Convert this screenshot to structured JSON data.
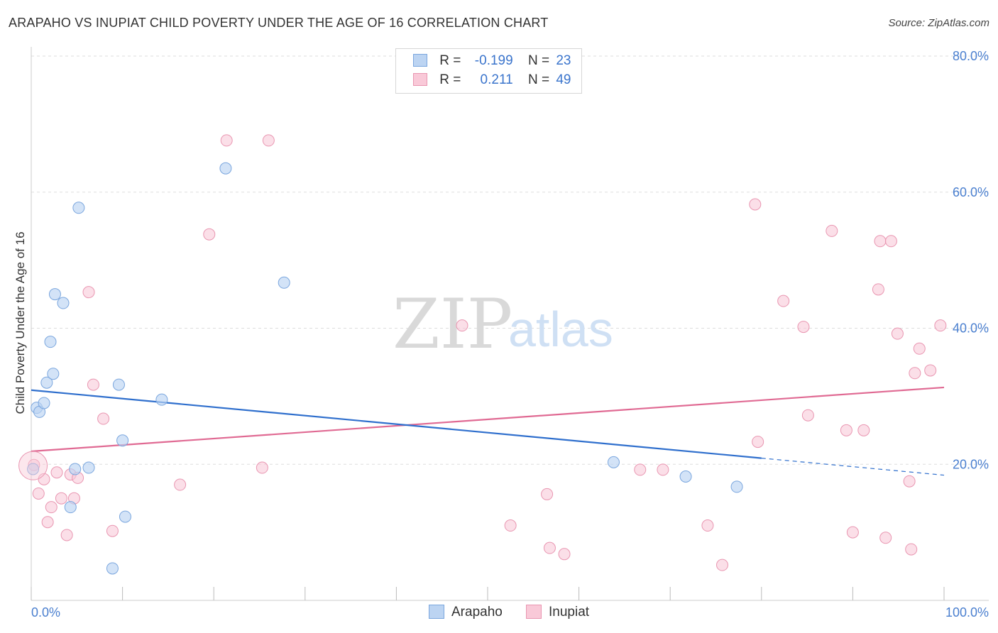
{
  "header": {
    "title": "ARAPAHO VS INUPIAT CHILD POVERTY UNDER THE AGE OF 16 CORRELATION CHART",
    "source": "Source: ZipAtlas.com"
  },
  "watermark": {
    "zip": "ZIP",
    "atlas": "atlas"
  },
  "legend": {
    "r_label": "R =",
    "n_label": "N =",
    "rows": [
      {
        "r": "-0.199",
        "n": "23"
      },
      {
        "r": "0.211",
        "n": "49"
      }
    ]
  },
  "bottom_legend": {
    "series_a": "Arapaho",
    "series_b": "Inupiat"
  },
  "colors": {
    "arapaho_fill": "#bcd4f2",
    "arapaho_stroke": "#7aa6de",
    "arapaho_line": "#2f6fcd",
    "inupiat_fill": "#f9c9d8",
    "inupiat_stroke": "#e996b1",
    "inupiat_line": "#e06a93",
    "tick_text": "#4a7fcf",
    "grid": "#dddddd"
  },
  "chart_data": {
    "type": "scatter",
    "title": "ARAPAHO VS INUPIAT CHILD POVERTY UNDER THE AGE OF 16 CORRELATION CHART",
    "xlabel": "",
    "ylabel": "Child Poverty Under the Age of 16",
    "xlim": [
      0,
      100
    ],
    "ylim": [
      0,
      80
    ],
    "x_tick_labels": [
      "0.0%",
      "100.0%"
    ],
    "y_ticks": [
      20,
      40,
      60,
      80
    ],
    "y_tick_labels": [
      "20.0%",
      "40.0%",
      "60.0%",
      "80.0%"
    ],
    "grid": true,
    "legend_position": "top-center",
    "series": [
      {
        "name": "Arapaho",
        "r": -0.199,
        "n": 23,
        "points": [
          {
            "x": 0.2,
            "y": 19.3
          },
          {
            "x": 0.6,
            "y": 28.3
          },
          {
            "x": 0.9,
            "y": 27.7
          },
          {
            "x": 1.4,
            "y": 29.0
          },
          {
            "x": 1.7,
            "y": 32.0
          },
          {
            "x": 2.1,
            "y": 38.0
          },
          {
            "x": 2.4,
            "y": 33.3
          },
          {
            "x": 2.6,
            "y": 45.0
          },
          {
            "x": 3.5,
            "y": 43.7
          },
          {
            "x": 4.3,
            "y": 13.7
          },
          {
            "x": 4.8,
            "y": 19.3
          },
          {
            "x": 5.2,
            "y": 57.7
          },
          {
            "x": 6.3,
            "y": 19.5
          },
          {
            "x": 8.9,
            "y": 4.7
          },
          {
            "x": 9.6,
            "y": 31.7
          },
          {
            "x": 10.0,
            "y": 23.5
          },
          {
            "x": 10.3,
            "y": 12.3
          },
          {
            "x": 14.3,
            "y": 29.5
          },
          {
            "x": 21.3,
            "y": 63.5
          },
          {
            "x": 27.7,
            "y": 46.7
          },
          {
            "x": 63.8,
            "y": 20.3
          },
          {
            "x": 71.7,
            "y": 18.2
          },
          {
            "x": 77.3,
            "y": 16.7
          }
        ],
        "trend": {
          "x": [
            0,
            80
          ],
          "y": [
            30.9,
            20.9
          ]
        },
        "trend_dashed": {
          "x": [
            80,
            100
          ],
          "y": [
            20.9,
            18.4
          ]
        }
      },
      {
        "name": "Inupiat",
        "r": 0.211,
        "n": 49,
        "points": [
          {
            "x": 0.3,
            "y": 19.9
          },
          {
            "x": 0.8,
            "y": 15.7
          },
          {
            "x": 1.4,
            "y": 17.8
          },
          {
            "x": 1.8,
            "y": 11.5
          },
          {
            "x": 2.2,
            "y": 13.7
          },
          {
            "x": 2.8,
            "y": 18.8
          },
          {
            "x": 3.3,
            "y": 15.0
          },
          {
            "x": 3.9,
            "y": 9.6
          },
          {
            "x": 4.3,
            "y": 18.5
          },
          {
            "x": 4.7,
            "y": 15.0
          },
          {
            "x": 5.1,
            "y": 18.0
          },
          {
            "x": 6.3,
            "y": 45.3
          },
          {
            "x": 6.8,
            "y": 31.7
          },
          {
            "x": 7.9,
            "y": 26.7
          },
          {
            "x": 8.9,
            "y": 10.2
          },
          {
            "x": 16.3,
            "y": 17.0
          },
          {
            "x": 19.5,
            "y": 53.8
          },
          {
            "x": 21.4,
            "y": 67.6
          },
          {
            "x": 25.3,
            "y": 19.5
          },
          {
            "x": 26.0,
            "y": 67.6
          },
          {
            "x": 47.2,
            "y": 40.4
          },
          {
            "x": 52.5,
            "y": 11.0
          },
          {
            "x": 56.5,
            "y": 15.6
          },
          {
            "x": 56.8,
            "y": 7.7
          },
          {
            "x": 58.4,
            "y": 6.8
          },
          {
            "x": 66.7,
            "y": 19.2
          },
          {
            "x": 69.2,
            "y": 19.2
          },
          {
            "x": 74.1,
            "y": 11.0
          },
          {
            "x": 75.7,
            "y": 5.2
          },
          {
            "x": 79.3,
            "y": 58.2
          },
          {
            "x": 79.6,
            "y": 23.3
          },
          {
            "x": 82.4,
            "y": 44.0
          },
          {
            "x": 84.6,
            "y": 40.2
          },
          {
            "x": 85.1,
            "y": 27.2
          },
          {
            "x": 87.7,
            "y": 54.3
          },
          {
            "x": 89.3,
            "y": 25.0
          },
          {
            "x": 90.0,
            "y": 10.0
          },
          {
            "x": 91.2,
            "y": 25.0
          },
          {
            "x": 92.8,
            "y": 45.7
          },
          {
            "x": 93.0,
            "y": 52.8
          },
          {
            "x": 93.6,
            "y": 9.2
          },
          {
            "x": 94.2,
            "y": 52.8
          },
          {
            "x": 94.9,
            "y": 39.2
          },
          {
            "x": 96.2,
            "y": 17.5
          },
          {
            "x": 96.4,
            "y": 7.5
          },
          {
            "x": 96.8,
            "y": 33.4
          },
          {
            "x": 97.3,
            "y": 37.0
          },
          {
            "x": 98.5,
            "y": 33.8
          },
          {
            "x": 99.6,
            "y": 40.4
          }
        ],
        "trend": {
          "x": [
            0,
            100
          ],
          "y": [
            21.9,
            31.3
          ]
        }
      }
    ]
  }
}
